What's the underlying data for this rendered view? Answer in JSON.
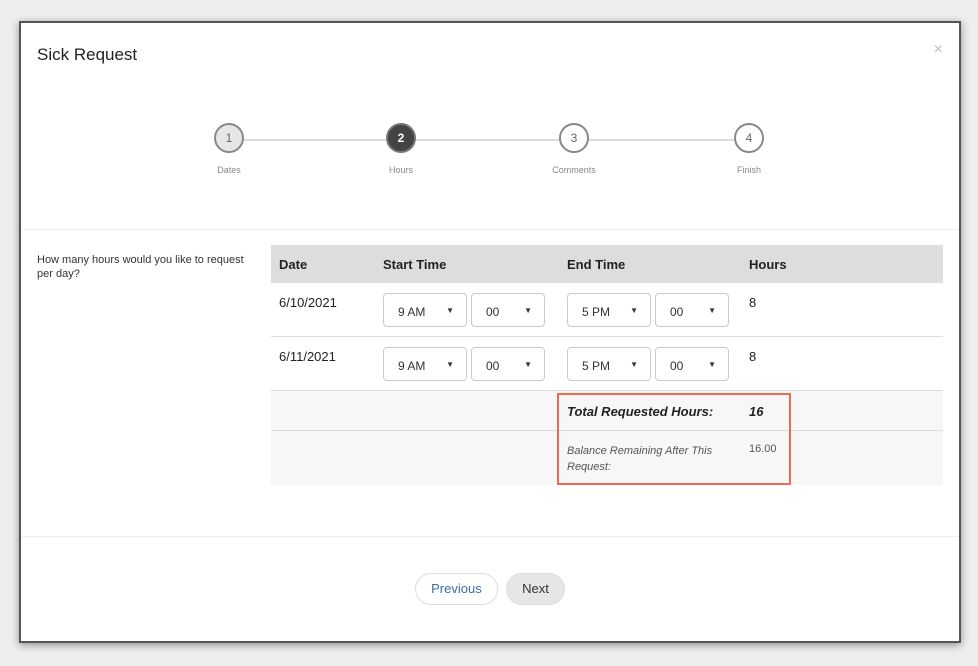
{
  "modal": {
    "title": "Sick Request",
    "close_icon": "×"
  },
  "steps": [
    {
      "number": "1",
      "label": "Dates",
      "state": "completed"
    },
    {
      "number": "2",
      "label": "Hours",
      "state": "active"
    },
    {
      "number": "3",
      "label": "Comments",
      "state": "pending"
    },
    {
      "number": "4",
      "label": "Finish",
      "state": "pending"
    }
  ],
  "question": "How many hours would you like to request per day?",
  "table": {
    "headers": [
      "Date",
      "Start Time",
      "End Time",
      "Hours"
    ],
    "rows": [
      {
        "date": "6/10/2021",
        "start_hour": "9 AM",
        "start_min": "00",
        "end_hour": "5 PM",
        "end_min": "00",
        "hours": "8"
      },
      {
        "date": "6/11/2021",
        "start_hour": "9 AM",
        "start_min": "00",
        "end_hour": "5 PM",
        "end_min": "00",
        "hours": "8"
      }
    ],
    "total_label": "Total Requested Hours:",
    "total_value": "16",
    "balance_label": "Balance Remaining After This Request:",
    "balance_value": "16.00",
    "highlight_color": "#ef6b55"
  },
  "buttons": {
    "previous": "Previous",
    "next": "Next"
  }
}
